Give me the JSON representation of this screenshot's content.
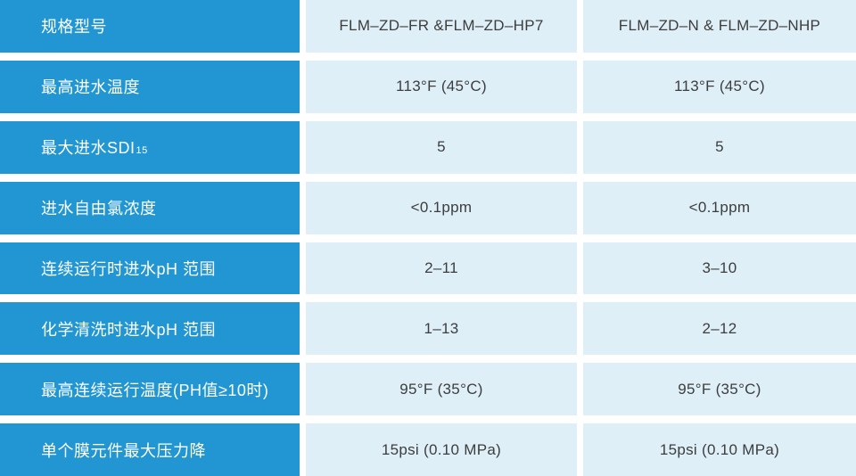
{
  "colors": {
    "label_bg": "#2196d3",
    "label_text": "#ffffff",
    "value_bg": "#deeff8",
    "value_text": "#3d3d3d",
    "page_bg": "#ffffff"
  },
  "chart_data": {
    "type": "table",
    "title": "",
    "columns": [
      "规格型号",
      "FLM–ZD–FR &FLM–ZD–HP7",
      "FLM–ZD–N & FLM–ZD–NHP"
    ],
    "rows": [
      {
        "label": "最高进水温度",
        "values": [
          "113°F (45°C)",
          "113°F (45°C)"
        ]
      },
      {
        "label": "最大进水SDI",
        "label_sub": "15",
        "values": [
          "5",
          "5"
        ]
      },
      {
        "label": "进水自由氯浓度",
        "values": [
          "<0.1ppm",
          "<0.1ppm"
        ]
      },
      {
        "label": "连续运行时进水pH 范围",
        "values": [
          "2–11",
          "3–10"
        ]
      },
      {
        "label": "化学清洗时进水pH 范围",
        "values": [
          "1–13",
          "2–12"
        ]
      },
      {
        "label": "最高连续运行温度(PH值≥10时)",
        "values": [
          "95°F (35°C)",
          "95°F (35°C)"
        ]
      },
      {
        "label": "单个膜元件最大压力降",
        "values": [
          "15psi (0.10 MPa)",
          "15psi (0.10 MPa)"
        ]
      }
    ]
  }
}
